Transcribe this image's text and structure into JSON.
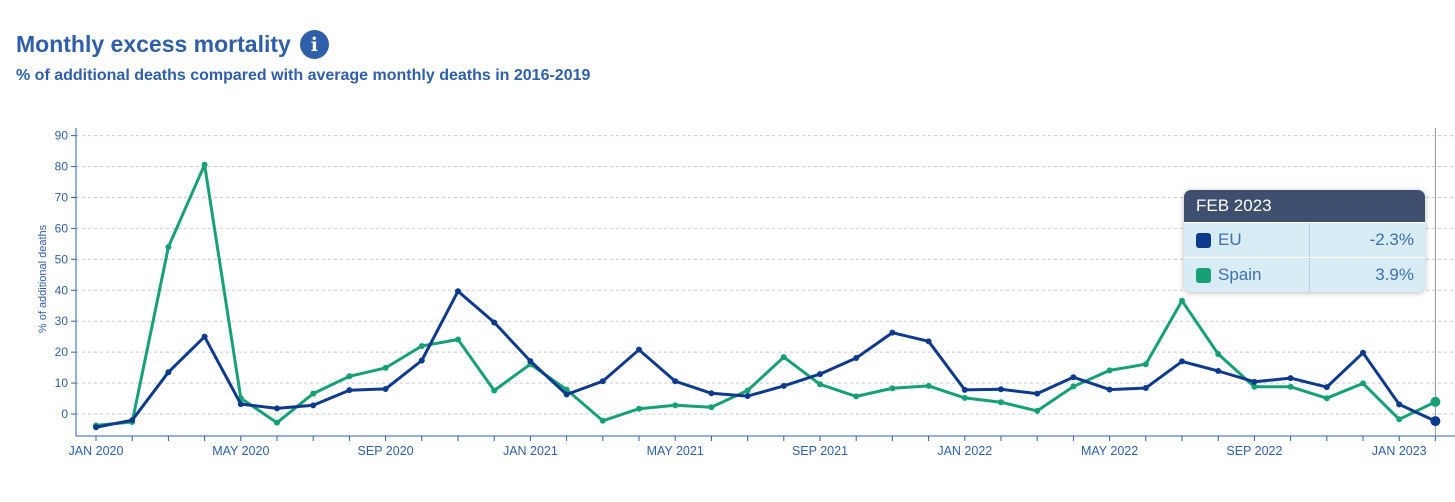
{
  "header": {
    "title": "Monthly excess mortality",
    "subtitle": "% of additional deaths compared with average monthly deaths in 2016-2019"
  },
  "tooltip": {
    "date": "FEB 2023",
    "rows": [
      {
        "name": "EU",
        "value": "-2.3%"
      },
      {
        "name": "Spain",
        "value": "3.9%"
      }
    ]
  },
  "chart_data": {
    "type": "line",
    "ylabel": "% of additional deaths",
    "ylim": [
      -7,
      95
    ],
    "yticks": [
      0,
      10,
      20,
      30,
      40,
      50,
      60,
      70,
      80,
      90
    ],
    "grid": true,
    "x_tick_labels": [
      "JAN 2020",
      "MAY 2020",
      "SEP 2020",
      "JAN 2021",
      "MAY 2021",
      "SEP 2021",
      "JAN 2022",
      "MAY 2022",
      "SEP 2022",
      "JAN 2023"
    ],
    "x": [
      "2020-01",
      "2020-02",
      "2020-03",
      "2020-04",
      "2020-05",
      "2020-06",
      "2020-07",
      "2020-08",
      "2020-09",
      "2020-10",
      "2020-11",
      "2020-12",
      "2021-01",
      "2021-02",
      "2021-03",
      "2021-04",
      "2021-05",
      "2021-06",
      "2021-07",
      "2021-08",
      "2021-09",
      "2021-10",
      "2021-11",
      "2021-12",
      "2022-01",
      "2022-02",
      "2022-03",
      "2022-04",
      "2022-05",
      "2022-06",
      "2022-07",
      "2022-08",
      "2022-09",
      "2022-10",
      "2022-11",
      "2022-12",
      "2023-01",
      "2023-02"
    ],
    "series": [
      {
        "name": "EU",
        "color": "#0e3a8c",
        "values": [
          -4.3,
          -2.0,
          13.5,
          25.0,
          3.2,
          1.8,
          2.8,
          7.7,
          8.1,
          17.3,
          39.7,
          29.6,
          17.1,
          6.3,
          10.6,
          20.8,
          10.6,
          6.7,
          5.8,
          9.1,
          12.9,
          18.1,
          26.3,
          23.5,
          7.8,
          8.0,
          6.6,
          11.9,
          7.9,
          8.4,
          17.0,
          13.9,
          10.4,
          11.6,
          8.7,
          19.8,
          3.1,
          -2.3
        ]
      },
      {
        "name": "Spain",
        "color": "#17a077",
        "values": [
          -3.7,
          -2.6,
          54.0,
          80.6,
          5.1,
          -2.8,
          6.6,
          12.2,
          14.9,
          22.0,
          24.1,
          7.6,
          16.1,
          7.9,
          -2.2,
          1.7,
          2.8,
          2.2,
          7.6,
          18.4,
          9.6,
          5.7,
          8.3,
          9.1,
          5.2,
          3.8,
          1.0,
          8.9,
          14.1,
          16.1,
          36.6,
          19.4,
          8.8,
          8.8,
          5.1,
          9.9,
          -1.7,
          3.9
        ]
      }
    ]
  }
}
